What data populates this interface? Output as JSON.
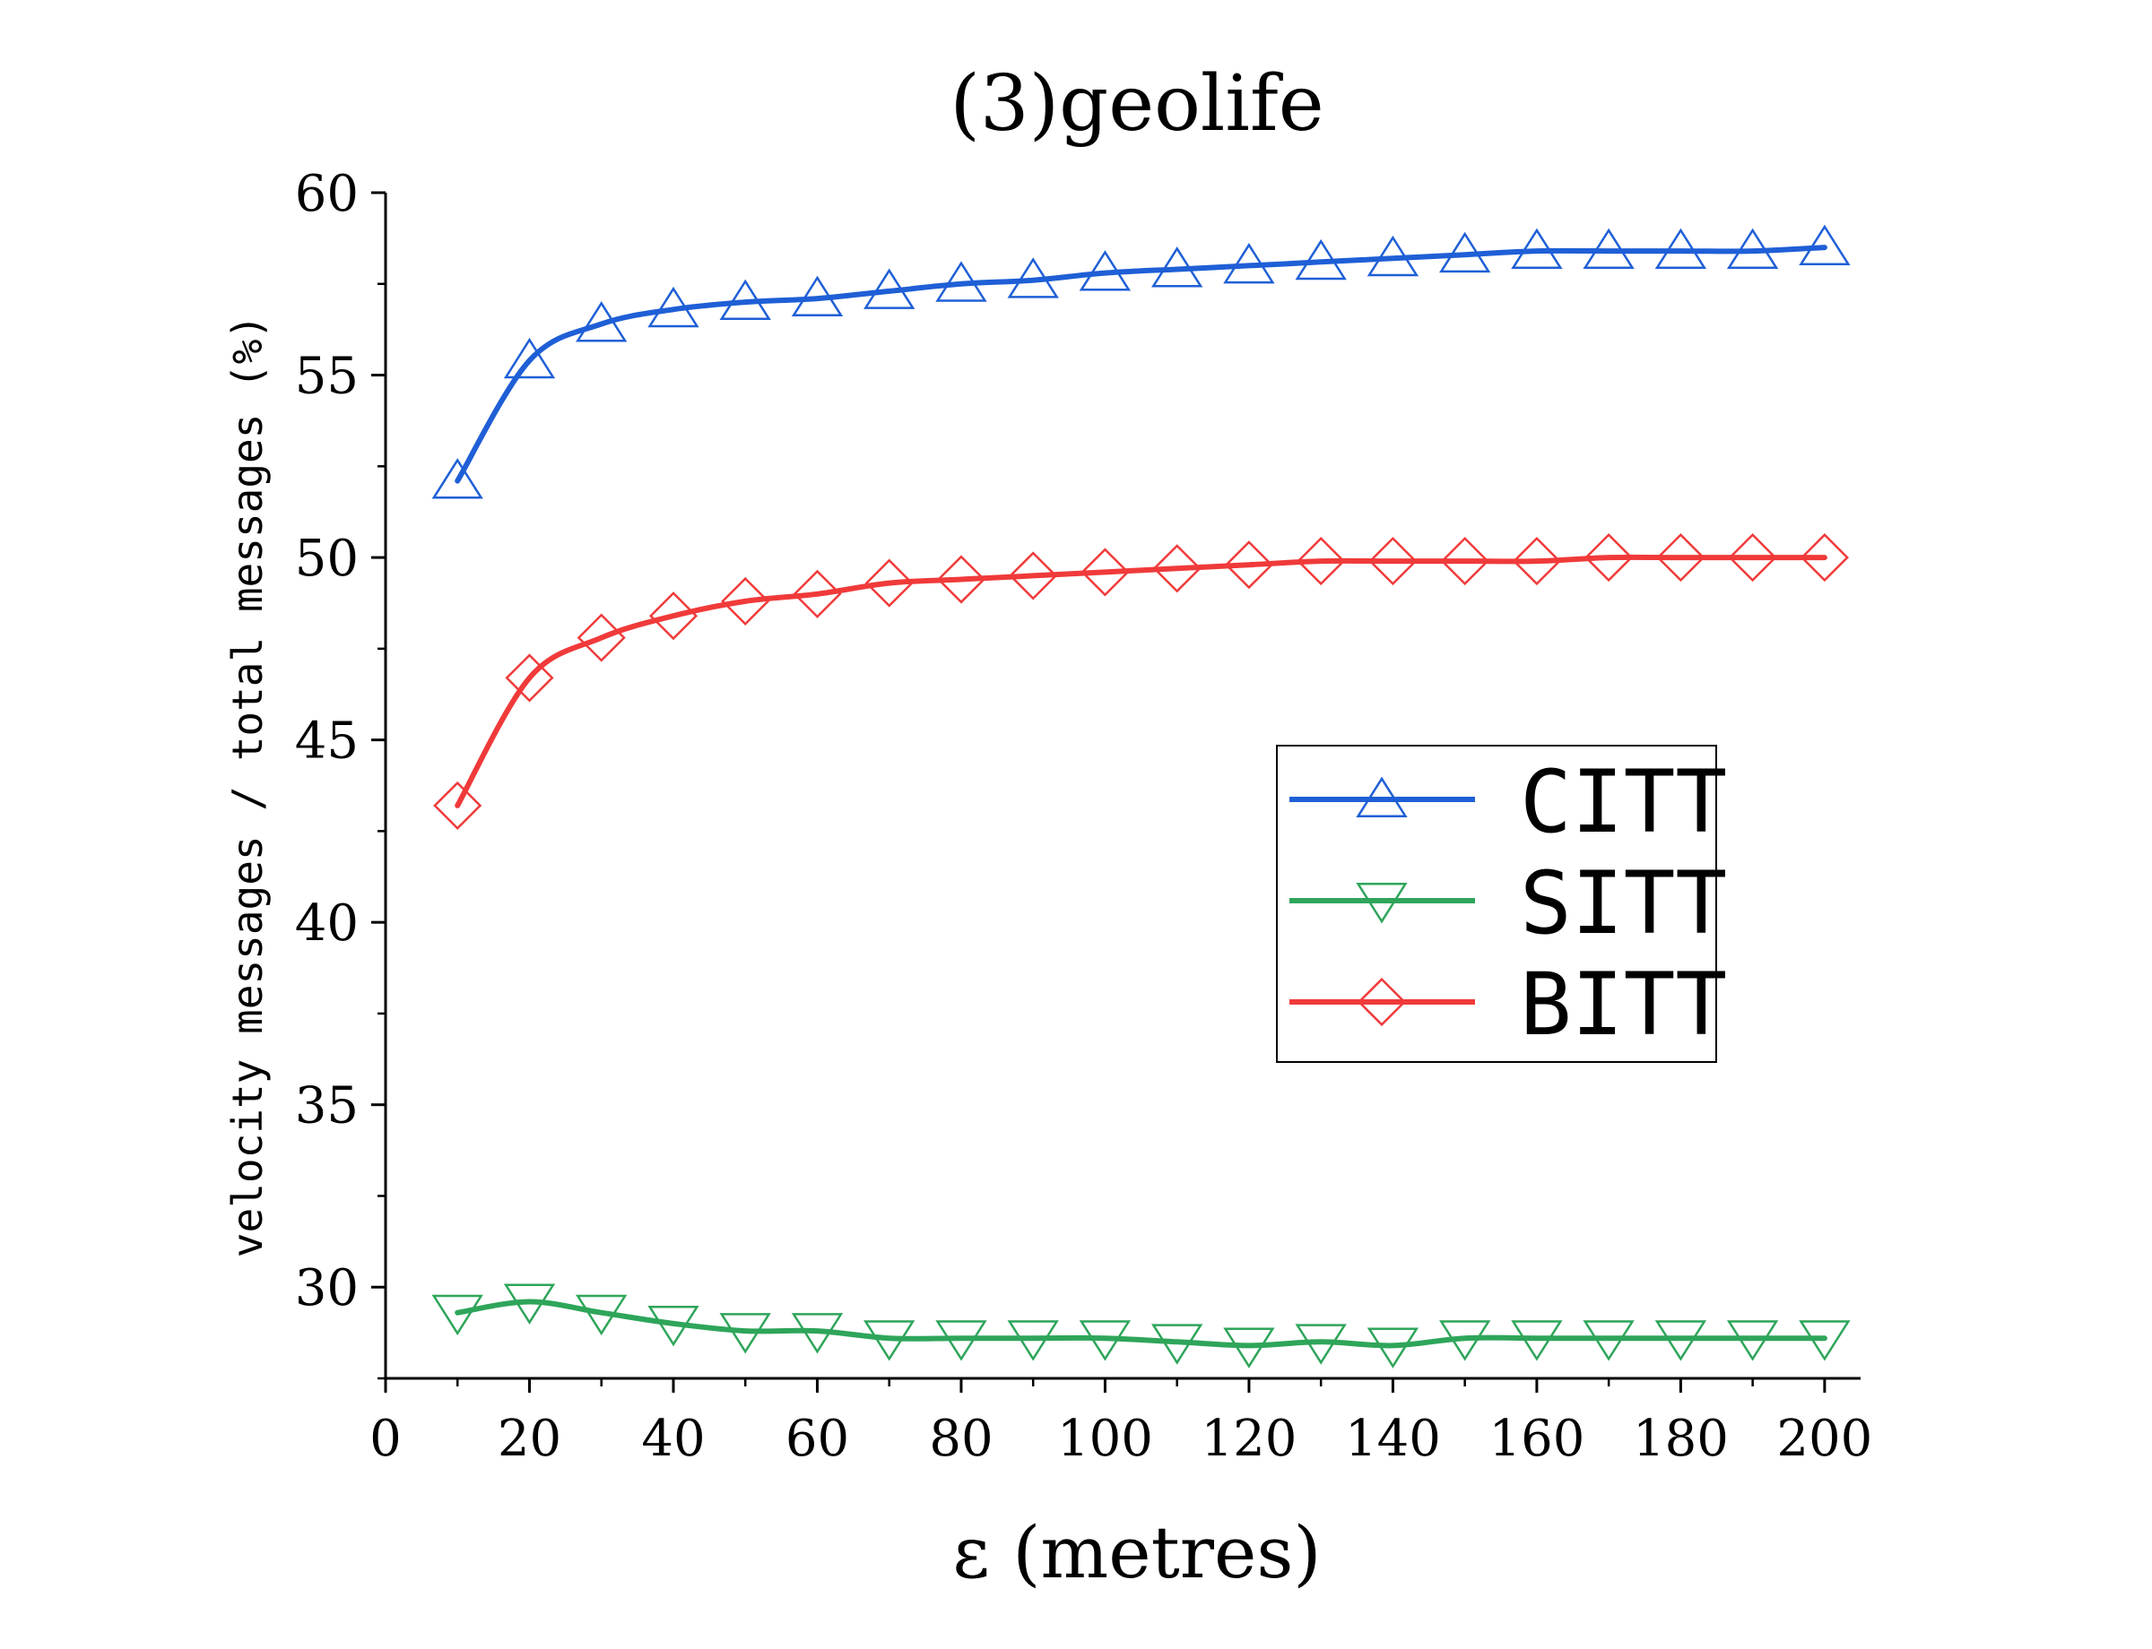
{
  "chart_data": {
    "type": "line",
    "title": "(3)geolife",
    "xlabel": "ε  (metres)",
    "ylabel": "velocity messages / total messages (%)",
    "xlim": [
      0,
      205
    ],
    "ylim": [
      27.5,
      60
    ],
    "x_ticks": [
      0,
      20,
      40,
      60,
      80,
      100,
      120,
      140,
      160,
      180,
      200
    ],
    "y_ticks": [
      30,
      35,
      40,
      45,
      50,
      55,
      60
    ],
    "grid": false,
    "legend_position": "right",
    "x": [
      10,
      20,
      30,
      40,
      50,
      60,
      70,
      80,
      90,
      100,
      110,
      120,
      130,
      140,
      150,
      160,
      170,
      180,
      190,
      200
    ],
    "series": [
      {
        "name": "CITT",
        "color": "#1f5fd6",
        "marker": "triangle-up",
        "values": [
          52.1,
          55.4,
          56.4,
          56.8,
          57.0,
          57.1,
          57.3,
          57.5,
          57.6,
          57.8,
          57.9,
          58.0,
          58.1,
          58.2,
          58.3,
          58.4,
          58.4,
          58.4,
          58.4,
          58.5
        ]
      },
      {
        "name": "SITT",
        "color": "#2ea55a",
        "marker": "triangle-down",
        "values": [
          29.3,
          29.6,
          29.3,
          29.0,
          28.8,
          28.8,
          28.6,
          28.6,
          28.6,
          28.6,
          28.5,
          28.4,
          28.5,
          28.4,
          28.6,
          28.6,
          28.6,
          28.6,
          28.6,
          28.6
        ]
      },
      {
        "name": "BITT",
        "color": "#f03a3a",
        "marker": "diamond",
        "values": [
          43.2,
          46.7,
          47.8,
          48.4,
          48.8,
          49.0,
          49.3,
          49.4,
          49.5,
          49.6,
          49.7,
          49.8,
          49.9,
          49.9,
          49.9,
          49.9,
          50.0,
          50.0,
          50.0,
          50.0
        ]
      }
    ]
  }
}
